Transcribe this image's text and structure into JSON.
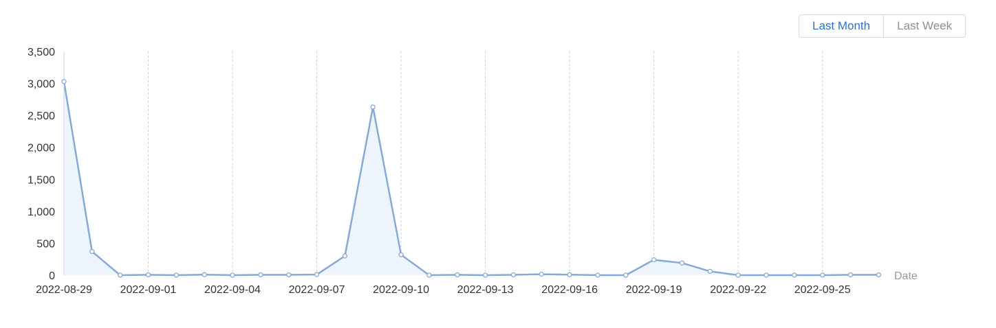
{
  "range_toggle": {
    "options": [
      {
        "label": "Last Month",
        "active": true
      },
      {
        "label": "Last Week",
        "active": false
      }
    ]
  },
  "chart_data": {
    "type": "area",
    "title": "",
    "xlabel": "Date",
    "ylabel": "",
    "x": [
      "2022-08-29",
      "2022-08-30",
      "2022-08-31",
      "2022-09-01",
      "2022-09-02",
      "2022-09-03",
      "2022-09-04",
      "2022-09-05",
      "2022-09-06",
      "2022-09-07",
      "2022-09-08",
      "2022-09-09",
      "2022-09-10",
      "2022-09-11",
      "2022-09-12",
      "2022-09-13",
      "2022-09-14",
      "2022-09-15",
      "2022-09-16",
      "2022-09-17",
      "2022-09-18",
      "2022-09-19",
      "2022-09-20",
      "2022-09-21",
      "2022-09-22",
      "2022-09-23",
      "2022-09-24",
      "2022-09-25",
      "2022-09-26",
      "2022-09-27"
    ],
    "x_tick_labels": [
      "2022-08-29",
      "2022-09-01",
      "2022-09-04",
      "2022-09-07",
      "2022-09-10",
      "2022-09-13",
      "2022-09-16",
      "2022-09-19",
      "2022-09-22",
      "2022-09-25"
    ],
    "y_ticks": [
      0,
      500,
      1000,
      1500,
      2000,
      2500,
      3000,
      3500
    ],
    "y_tick_labels": [
      "0",
      "500",
      "1,000",
      "1,500",
      "2,000",
      "2,500",
      "3,000",
      "3,500"
    ],
    "ylim": [
      0,
      3500
    ],
    "series": [
      {
        "values": [
          3030,
          370,
          0,
          5,
          0,
          8,
          0,
          5,
          5,
          10,
          300,
          2630,
          320,
          0,
          5,
          0,
          5,
          15,
          8,
          0,
          0,
          240,
          190,
          60,
          0,
          0,
          0,
          0,
          5,
          5
        ]
      }
    ],
    "grid": "vertical dashed at labeled dates",
    "legend": "none",
    "colors": {
      "line": "#86a9d6",
      "area": "#eef4fb",
      "grid": "#cccccc",
      "axis": "#c8d3e6"
    }
  }
}
